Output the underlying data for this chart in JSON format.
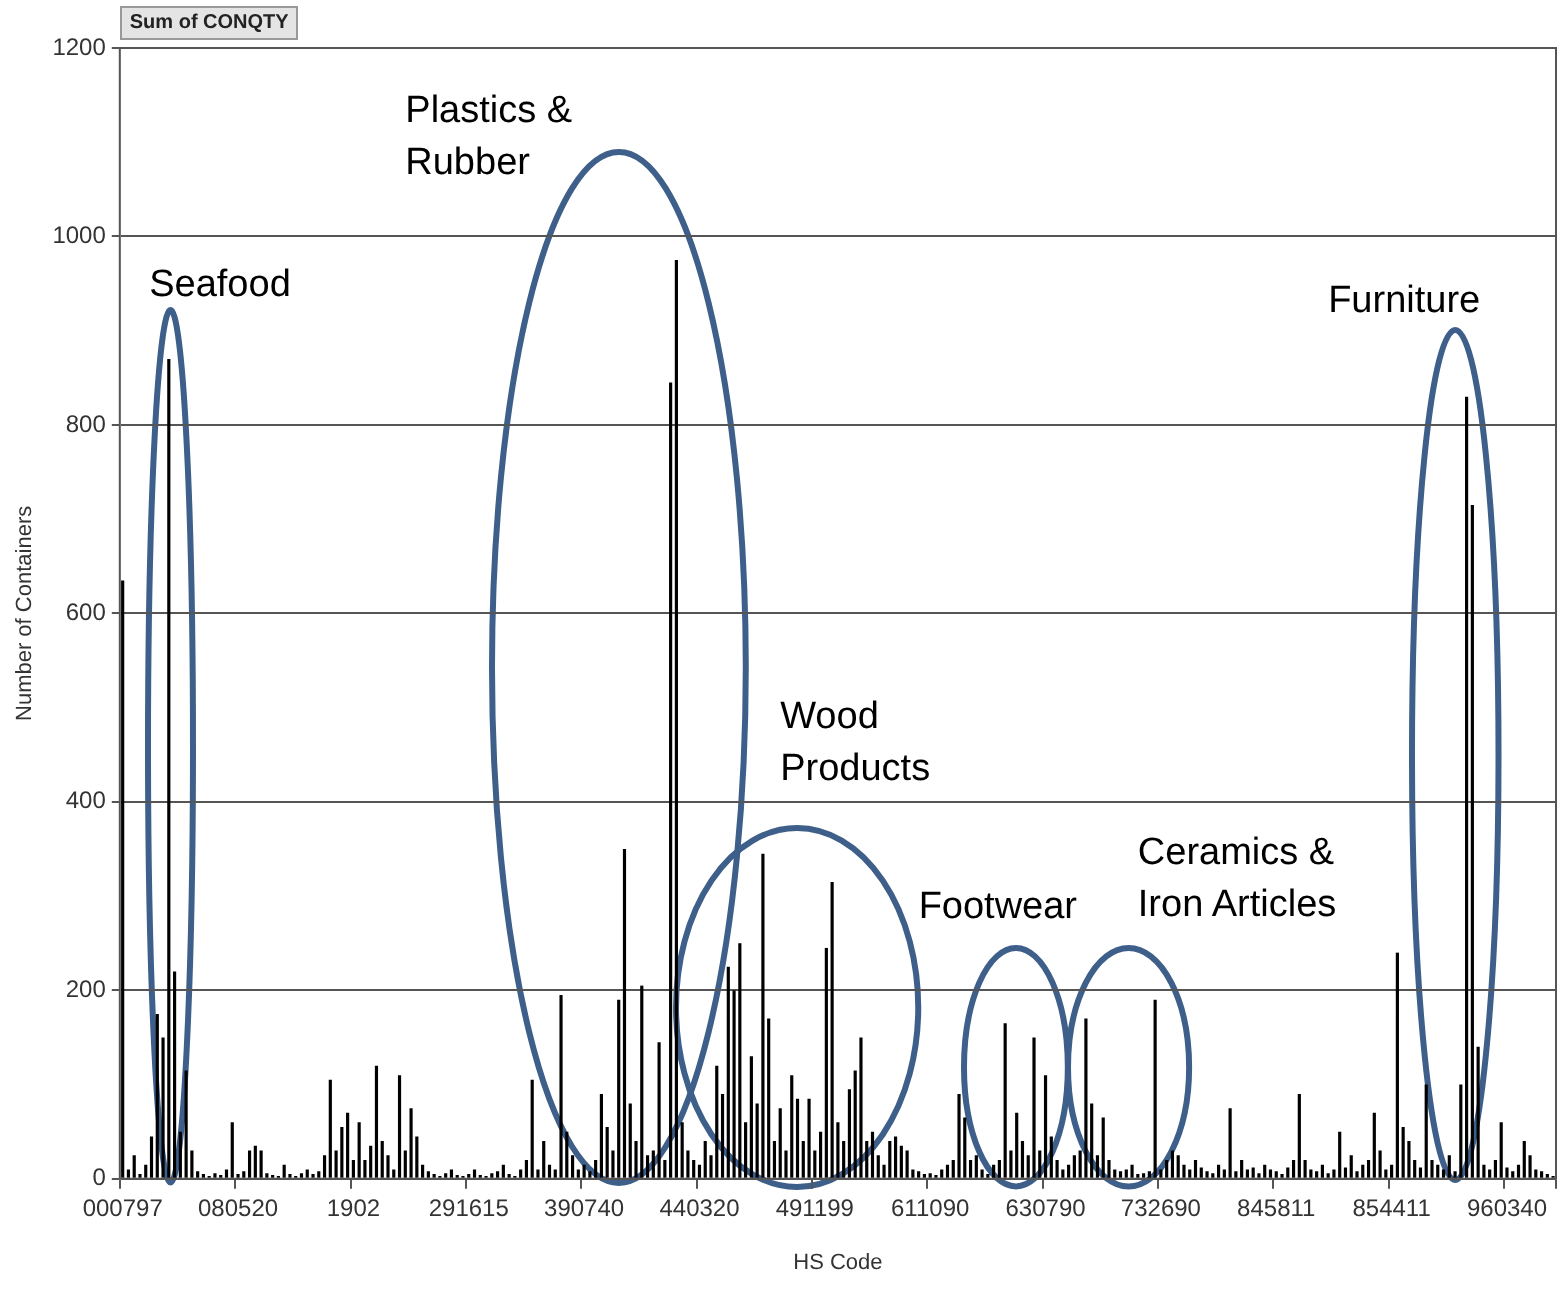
{
  "chart_data": {
    "type": "bar",
    "xlabel": "HS Code",
    "ylabel": "Number of Containers",
    "categories": [
      "000797",
      null,
      null,
      null,
      null,
      null,
      null,
      null,
      null,
      null,
      null,
      null,
      null,
      null,
      null,
      null,
      null,
      null,
      null,
      null,
      "080520",
      null,
      null,
      null,
      null,
      null,
      null,
      null,
      null,
      null,
      null,
      null,
      null,
      null,
      null,
      null,
      null,
      null,
      null,
      null,
      "1902",
      null,
      null,
      null,
      null,
      null,
      null,
      null,
      null,
      null,
      null,
      null,
      null,
      null,
      null,
      null,
      null,
      null,
      null,
      null,
      "291615",
      null,
      null,
      null,
      null,
      null,
      null,
      null,
      null,
      null,
      null,
      null,
      null,
      null,
      null,
      null,
      null,
      null,
      null,
      null,
      "390740",
      null,
      null,
      null,
      null,
      null,
      null,
      null,
      null,
      null,
      null,
      null,
      null,
      null,
      null,
      null,
      null,
      null,
      null,
      null,
      "440320",
      null,
      null,
      null,
      null,
      null,
      null,
      null,
      null,
      null,
      null,
      null,
      null,
      null,
      null,
      null,
      null,
      null,
      null,
      null,
      "491199",
      null,
      null,
      null,
      null,
      null,
      null,
      null,
      null,
      null,
      null,
      null,
      null,
      null,
      null,
      null,
      null,
      null,
      null,
      null,
      "611090",
      null,
      null,
      null,
      null,
      null,
      null,
      null,
      null,
      null,
      null,
      null,
      null,
      null,
      null,
      null,
      null,
      null,
      null,
      null,
      "630790",
      null,
      null,
      null,
      null,
      null,
      null,
      null,
      null,
      null,
      null,
      null,
      null,
      null,
      null,
      null,
      null,
      null,
      null,
      null,
      "732690",
      null,
      null,
      null,
      null,
      null,
      null,
      null,
      null,
      null,
      null,
      null,
      null,
      null,
      null,
      null,
      null,
      null,
      null,
      null,
      "845811",
      null,
      null,
      null,
      null,
      null,
      null,
      null,
      null,
      null,
      null,
      null,
      null,
      null,
      null,
      null,
      null,
      null,
      null,
      null,
      "854411",
      null,
      null,
      null,
      null,
      null,
      null,
      null,
      null,
      null,
      null,
      null,
      null,
      null,
      null,
      null,
      null,
      null,
      null,
      null,
      "960340",
      null,
      null,
      null,
      null,
      null,
      null,
      null,
      null
    ],
    "values": [
      635,
      10,
      25,
      5,
      15,
      45,
      175,
      150,
      870,
      220,
      50,
      115,
      30,
      8,
      5,
      3,
      6,
      4,
      10,
      60,
      5,
      8,
      30,
      35,
      30,
      6,
      4,
      3,
      15,
      5,
      3,
      6,
      10,
      5,
      8,
      25,
      105,
      30,
      55,
      70,
      20,
      60,
      20,
      35,
      120,
      40,
      25,
      10,
      110,
      30,
      75,
      45,
      15,
      8,
      5,
      3,
      6,
      10,
      4,
      3,
      5,
      10,
      4,
      3,
      6,
      8,
      15,
      5,
      3,
      10,
      20,
      105,
      10,
      40,
      15,
      10,
      195,
      50,
      25,
      10,
      15,
      8,
      20,
      90,
      55,
      30,
      190,
      350,
      80,
      40,
      205,
      25,
      30,
      145,
      20,
      845,
      975,
      60,
      30,
      20,
      15,
      40,
      25,
      120,
      90,
      225,
      200,
      250,
      60,
      130,
      80,
      345,
      170,
      40,
      75,
      30,
      110,
      85,
      40,
      85,
      30,
      50,
      245,
      315,
      60,
      40,
      95,
      115,
      150,
      40,
      50,
      25,
      15,
      40,
      45,
      35,
      30,
      10,
      8,
      5,
      6,
      4,
      10,
      15,
      20,
      90,
      65,
      20,
      25,
      10,
      5,
      15,
      20,
      165,
      30,
      70,
      40,
      25,
      150,
      30,
      110,
      45,
      20,
      10,
      15,
      25,
      30,
      170,
      80,
      25,
      65,
      20,
      10,
      8,
      10,
      15,
      5,
      6,
      8,
      190,
      10,
      20,
      30,
      25,
      15,
      10,
      20,
      12,
      8,
      6,
      15,
      10,
      75,
      8,
      20,
      10,
      12,
      6,
      15,
      10,
      8,
      5,
      12,
      20,
      90,
      20,
      10,
      8,
      15,
      6,
      10,
      50,
      12,
      25,
      8,
      15,
      20,
      70,
      30,
      10,
      15,
      240,
      55,
      40,
      20,
      12,
      100,
      20,
      15,
      10,
      25,
      8,
      100,
      830,
      715,
      140,
      15,
      10,
      20,
      60,
      12,
      8,
      15,
      40,
      25,
      10,
      8,
      5,
      3
    ],
    "color": "#000000",
    "ylim": [
      0,
      1200
    ],
    "yticks": [
      0,
      200,
      400,
      600,
      800,
      1000,
      1200
    ],
    "grid": "y",
    "legend": false,
    "annotations": [
      "Sum of CONQTY",
      "Seafood",
      "Plastics & Rubber",
      "Wood Products",
      "Footwear",
      "Ceramics & Iron Articles",
      "Furniture"
    ]
  }
}
